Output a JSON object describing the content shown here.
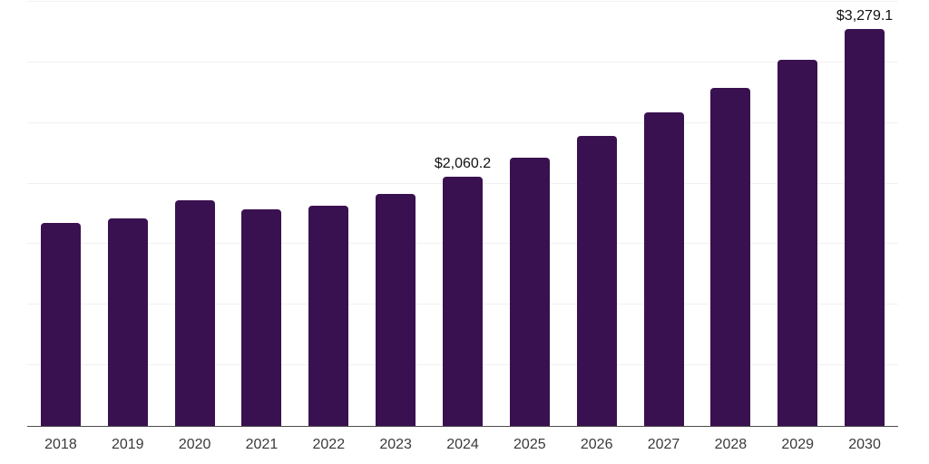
{
  "chart_data": {
    "type": "bar",
    "title": "",
    "xlabel": "",
    "ylabel": "",
    "categories": [
      "2018",
      "2019",
      "2020",
      "2021",
      "2022",
      "2023",
      "2024",
      "2025",
      "2026",
      "2027",
      "2028",
      "2029",
      "2030"
    ],
    "values": [
      1676,
      1713,
      1861,
      1790,
      1818,
      1915,
      2060.2,
      2212,
      2394,
      2585,
      2790,
      3019,
      3279.1
    ],
    "data_labels": {
      "2024": "$2,060.2",
      "2030": "$3,279.1"
    },
    "ylim": [
      0,
      3500
    ],
    "gridline_step": 500,
    "grid": true,
    "legend_position": "none",
    "colors": {
      "bar": "#3a1150",
      "gridline": "#f1f1f1",
      "axis_line": "#4d4d4d",
      "tick_label": "#3a3a3a",
      "data_label": "#111111",
      "background": "#ffffff"
    }
  }
}
